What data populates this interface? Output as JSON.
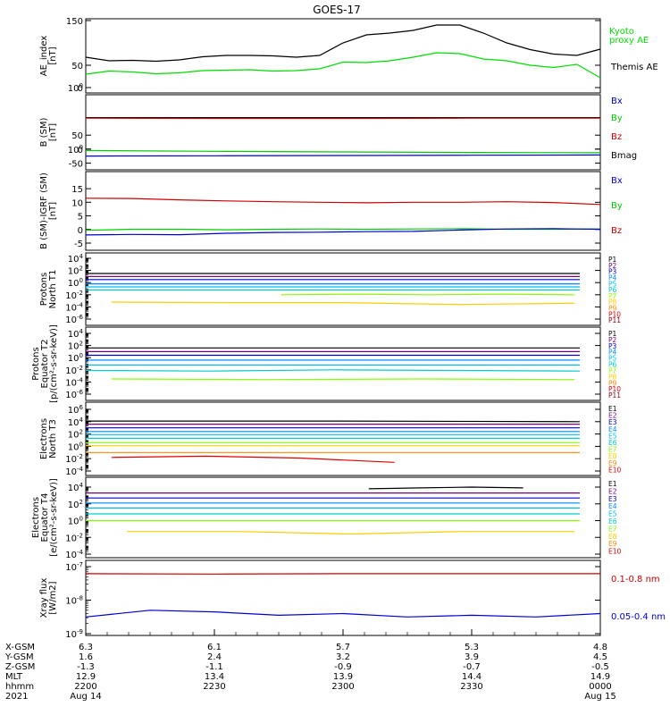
{
  "chart_data": {
    "type": "line",
    "title": "GOES-17",
    "time_axis": {
      "rows": [
        {
          "label": "X-GSM",
          "values": [
            "6.3",
            "6.1",
            "5.7",
            "5.3",
            "4.8"
          ]
        },
        {
          "label": "Y-GSM",
          "values": [
            "1.6",
            "2.4",
            "3.2",
            "3.9",
            "4.5"
          ]
        },
        {
          "label": "Z-GSM",
          "values": [
            "-1.3",
            "-1.1",
            "-0.9",
            "-0.7",
            "-0.5"
          ]
        },
        {
          "label": "MLT",
          "values": [
            "12.9",
            "13.4",
            "13.9",
            "14.4",
            "14.9"
          ]
        },
        {
          "label": "hhmm",
          "values": [
            "2200",
            "2230",
            "2300",
            "2330",
            "0000"
          ]
        }
      ],
      "year": "2021",
      "start_date": "Aug 14",
      "end_date": "Aug 15"
    },
    "panels": [
      {
        "id": "ae",
        "ylabel": [
          "AE_index",
          "[nT]"
        ],
        "scale": "linear",
        "ylim": [
          0,
          150
        ],
        "ticks": [
          "0",
          "50",
          "100",
          "150"
        ],
        "legend": [
          {
            "label": "Kyoto",
            "color": "#00dd00"
          },
          {
            "label": "proxy AE",
            "color": "#00dd00"
          },
          {
            "label": "Themis AE",
            "color": "#000000"
          }
        ],
        "series": [
          {
            "name": "Themis AE",
            "color": "#000000",
            "values": [
              68,
              60,
              61,
              59,
              62,
              69,
              72,
              72,
              71,
              68,
              72,
              100,
              118,
              122,
              128,
              140,
              140,
              122,
              100,
              85,
              75,
              72,
              86
            ]
          },
          {
            "name": "Kyoto proxy AE",
            "color": "#00dd00",
            "values": [
              30,
              37,
              35,
              31,
              33,
              38,
              39,
              40,
              37,
              38,
              42,
              57,
              56,
              60,
              68,
              78,
              76,
              64,
              60,
              50,
              45,
              52,
              22
            ]
          }
        ]
      },
      {
        "id": "bsm",
        "ylabel": [
          "B (SM)",
          "[nT]"
        ],
        "scale": "linear",
        "ylim": [
          -55,
          150
        ],
        "ticks": [
          "-50",
          "0",
          "50",
          "100"
        ],
        "legend": [
          {
            "label": "Bx",
            "color": "#0000cc"
          },
          {
            "label": "By",
            "color": "#00cc00"
          },
          {
            "label": "Bz",
            "color": "#cc0000"
          },
          {
            "label": "Bmag",
            "color": "#000000"
          }
        ],
        "series": [
          {
            "name": "Bmag",
            "color": "#000000",
            "values": [
              113,
              113,
              113,
              113,
              113
            ]
          },
          {
            "name": "Bz",
            "color": "#cc0000",
            "values": [
              111,
              110,
              110,
              111,
              111
            ]
          },
          {
            "name": "By",
            "color": "#00cc00",
            "values": [
              -5,
              -8,
              -10,
              -12,
              -13
            ]
          },
          {
            "name": "Bx",
            "color": "#0000cc",
            "values": [
              -25,
              -24,
              -23,
              -22,
              -21
            ]
          }
        ]
      },
      {
        "id": "bigrf",
        "ylabel": [
          "B (SM)-IGRF (SM)",
          "[nT]"
        ],
        "scale": "linear",
        "ylim": [
          -5,
          17
        ],
        "ticks": [
          "-5",
          "0",
          "5",
          "10",
          "15"
        ],
        "legend": [
          {
            "label": "Bx",
            "color": "#0000cc"
          },
          {
            "label": "By",
            "color": "#00cc00"
          },
          {
            "label": "Bz",
            "color": "#cc0000"
          }
        ],
        "series": [
          {
            "name": "Bz",
            "color": "#cc0000",
            "values": [
              11.5,
              11.4,
              10.9,
              10.5,
              10.2,
              10.0,
              9.8,
              10.0,
              10.0,
              10.2,
              9.9,
              9.2
            ]
          },
          {
            "name": "By",
            "color": "#00cc00",
            "values": [
              -0.3,
              0.1,
              0.1,
              -0.1,
              0.1,
              0.2,
              0.1,
              0.2,
              0.3,
              0.1,
              0.1,
              0.2
            ]
          },
          {
            "name": "Bx",
            "color": "#0000cc",
            "values": [
              -2.0,
              -1.8,
              -1.9,
              -1.4,
              -1.1,
              -1.0,
              -0.8,
              -0.7,
              -0.2,
              0.2,
              0.3,
              0.1
            ]
          }
        ]
      },
      {
        "id": "pnorth",
        "ylabel": [
          "Protons",
          "North T1"
        ],
        "scale": "log",
        "ylim": [
          -6,
          4
        ],
        "ticks": [
          "10-6",
          "10-4",
          "10-2",
          "100",
          "102",
          "104"
        ],
        "legend": [
          {
            "label": "P1",
            "color": "#000000"
          },
          {
            "label": "P2",
            "color": "#770077"
          },
          {
            "label": "P3",
            "color": "#0000cc"
          },
          {
            "label": "P4",
            "color": "#0088ff"
          },
          {
            "label": "P5",
            "color": "#00bbee"
          },
          {
            "label": "P6",
            "color": "#00cccc"
          },
          {
            "label": "P7",
            "color": "#88ff00"
          },
          {
            "label": "P8",
            "color": "#ffcc00"
          },
          {
            "label": "P9",
            "color": "#ff8800"
          },
          {
            "label": "P10",
            "color": "#dd0000"
          },
          {
            "label": "P11",
            "color": "#880000"
          }
        ],
        "series": [
          {
            "name": "P1",
            "values": [
              1.5,
              1.5,
              1.5
            ]
          },
          {
            "name": "P2",
            "values": [
              1.0,
              1.0,
              1.0
            ]
          },
          {
            "name": "P3",
            "values": [
              0.5,
              0.5,
              0.5
            ]
          },
          {
            "name": "P4",
            "values": [
              -0.2,
              -0.2,
              -0.2
            ]
          },
          {
            "name": "P5",
            "values": [
              -0.7,
              -0.7,
              -0.7
            ]
          },
          {
            "name": "P6",
            "values": [
              -1.2,
              -1.2,
              -1.2
            ]
          },
          {
            "name": "P7",
            "values": [
              -2.0,
              -1.9,
              -2.0,
              -1.9,
              -2.0
            ]
          },
          {
            "name": "P8",
            "values": [
              -3.2,
              -3.3,
              -3.3,
              -3.6,
              -3.4
            ]
          }
        ]
      },
      {
        "id": "pequator",
        "ylabel": [
          "Protons",
          "Equator T2",
          "[p/(cm²-s-sr-keV)]"
        ],
        "scale": "log",
        "ylim": [
          -6,
          4
        ],
        "ticks": [
          "10-6",
          "10-4",
          "10-2",
          "100",
          "102",
          "104"
        ],
        "legend": [
          {
            "label": "P1",
            "color": "#000000"
          },
          {
            "label": "P2",
            "color": "#770077"
          },
          {
            "label": "P3",
            "color": "#0000cc"
          },
          {
            "label": "P4",
            "color": "#0088ff"
          },
          {
            "label": "P5",
            "color": "#00bbee"
          },
          {
            "label": "P6",
            "color": "#00cccc"
          },
          {
            "label": "P7",
            "color": "#88ff00"
          },
          {
            "label": "P8",
            "color": "#ffcc00"
          },
          {
            "label": "P9",
            "color": "#ff8800"
          },
          {
            "label": "P10",
            "color": "#dd0000"
          },
          {
            "label": "P11",
            "color": "#880000"
          }
        ],
        "series": [
          {
            "name": "P1",
            "values": [
              1.6,
              1.6,
              1.6
            ]
          },
          {
            "name": "P2",
            "values": [
              1.0,
              1.0,
              1.0
            ]
          },
          {
            "name": "P3",
            "values": [
              0.4,
              0.4,
              0.4
            ]
          },
          {
            "name": "P4",
            "values": [
              -0.4,
              -0.4,
              -0.4
            ]
          },
          {
            "name": "P5",
            "values": [
              -1.2,
              -1.2,
              -1.2
            ]
          },
          {
            "name": "P6",
            "values": [
              -2.1,
              -2.2,
              -2.0,
              -2.1,
              -2.2
            ]
          },
          {
            "name": "P7",
            "values": [
              -3.5,
              -3.6,
              -3.5,
              -3.6
            ]
          }
        ]
      },
      {
        "id": "enorth",
        "ylabel": [
          "Electrons",
          "North T3"
        ],
        "scale": "log",
        "ylim": [
          -4,
          6
        ],
        "ticks": [
          "10-4",
          "10-2",
          "100",
          "102",
          "104",
          "106"
        ],
        "legend": [
          {
            "label": "E1",
            "color": "#000000"
          },
          {
            "label": "E2",
            "color": "#770077"
          },
          {
            "label": "E3",
            "color": "#0000cc"
          },
          {
            "label": "E4",
            "color": "#0088ff"
          },
          {
            "label": "E5",
            "color": "#00bbee"
          },
          {
            "label": "E6",
            "color": "#00cccc"
          },
          {
            "label": "E7",
            "color": "#88ff00"
          },
          {
            "label": "E8",
            "color": "#ffcc00"
          },
          {
            "label": "E9",
            "color": "#ff8800"
          },
          {
            "label": "E10",
            "color": "#dd0000"
          }
        ],
        "series": [
          {
            "name": "E1",
            "values": [
              4.1,
              4.1,
              4.0
            ]
          },
          {
            "name": "E2",
            "values": [
              3.6,
              3.6,
              3.6
            ]
          },
          {
            "name": "E3",
            "values": [
              3.0,
              3.0,
              3.0
            ]
          },
          {
            "name": "E4",
            "values": [
              2.4,
              2.4,
              2.4
            ]
          },
          {
            "name": "E5",
            "values": [
              1.9,
              1.9,
              1.9
            ]
          },
          {
            "name": "E6",
            "values": [
              1.3,
              1.3,
              1.3
            ]
          },
          {
            "name": "E7",
            "values": [
              0.6,
              0.6,
              0.6
            ]
          },
          {
            "name": "E8",
            "values": [
              0.1,
              0.1,
              0.1
            ]
          },
          {
            "name": "E9",
            "values": [
              -1.0,
              -1.0,
              -1.0
            ]
          },
          {
            "name": "E10",
            "values": [
              -1.8,
              -1.6,
              -1.9,
              -2.6
            ]
          }
        ]
      },
      {
        "id": "eequator",
        "ylabel": [
          "Electrons",
          "Equator T4",
          "[e/(cm²-s-sr-keV)]"
        ],
        "scale": "log",
        "ylim": [
          -4,
          4
        ],
        "ticks": [
          "10-4",
          "10-2",
          "100",
          "102",
          "104"
        ],
        "legend": [
          {
            "label": "E1",
            "color": "#000000"
          },
          {
            "label": "E2",
            "color": "#770077"
          },
          {
            "label": "E3",
            "color": "#0000cc"
          },
          {
            "label": "E4",
            "color": "#0088ff"
          },
          {
            "label": "E5",
            "color": "#00bbee"
          },
          {
            "label": "E6",
            "color": "#00cccc"
          },
          {
            "label": "E7",
            "color": "#88ff00"
          },
          {
            "label": "E8",
            "color": "#ffcc00"
          },
          {
            "label": "E9",
            "color": "#ff8800"
          },
          {
            "label": "E10",
            "color": "#dd0000"
          }
        ],
        "series": [
          {
            "name": "E1",
            "values": [
              3.8,
              3.9,
              4.0,
              3.9
            ]
          },
          {
            "name": "E2",
            "values": [
              3.3,
              3.3,
              3.3
            ]
          },
          {
            "name": "E3",
            "values": [
              2.7,
              2.7,
              2.7
            ]
          },
          {
            "name": "E4",
            "values": [
              2.1,
              2.1,
              2.1
            ]
          },
          {
            "name": "E5",
            "values": [
              1.5,
              1.5,
              1.5
            ]
          },
          {
            "name": "E6",
            "values": [
              0.8,
              0.8,
              0.8
            ]
          },
          {
            "name": "E7",
            "values": [
              0.0,
              0.0,
              0.0
            ]
          },
          {
            "name": "E8",
            "values": [
              -1.3,
              -1.3,
              -1.6,
              -1.3,
              -1.3
            ]
          }
        ]
      },
      {
        "id": "xray",
        "ylabel": [
          "Xray flux",
          "[W/m2]"
        ],
        "scale": "log",
        "ylim": [
          -9,
          -7
        ],
        "ticks": [
          "10-9",
          "10-8",
          "10-7"
        ],
        "legend": [
          {
            "label": "0.1-0.8 nm",
            "color": "#cc0000"
          },
          {
            "label": "0.05-0.4 nm",
            "color": "#0000cc"
          }
        ],
        "series": [
          {
            "name": "0.1-0.8 nm",
            "color": "#cc0000",
            "values": [
              -7.21,
              -7.22,
              -7.21,
              -7.21,
              -7.21
            ]
          },
          {
            "name": "0.05-0.4 nm",
            "color": "#0000cc",
            "values": [
              -8.5,
              -8.3,
              -8.35,
              -8.45,
              -8.4,
              -8.5,
              -8.45,
              -8.5,
              -8.4
            ]
          }
        ]
      }
    ]
  }
}
